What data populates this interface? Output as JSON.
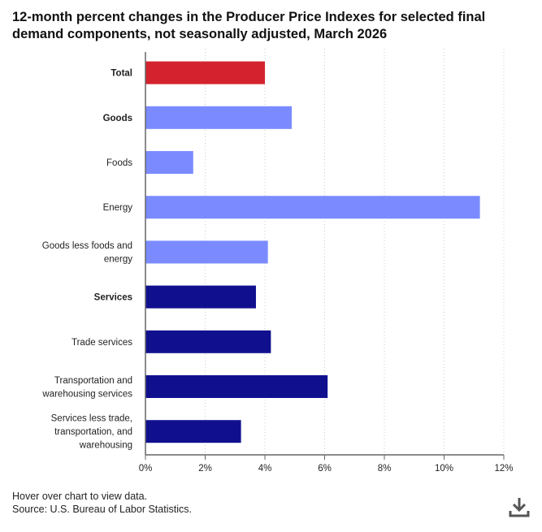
{
  "title": "12-month percent changes in the Producer Price Indexes for selected final demand components, not seasonally adjusted, March 2026",
  "footer": {
    "hint": "Hover over chart to view data.",
    "source": "Source: U.S. Bureau of Labor Statistics."
  },
  "download_icon": "download-icon",
  "colors": {
    "total": "#d4232e",
    "goods": "#7b8bff",
    "services": "#10108f",
    "axis": "#666666",
    "grid": "#cccccc"
  },
  "chart_data": {
    "type": "bar",
    "orientation": "horizontal",
    "categories": [
      [
        "Total"
      ],
      [
        "Goods"
      ],
      [
        "Foods"
      ],
      [
        "Energy"
      ],
      [
        "Goods less foods and",
        "energy"
      ],
      [
        "Services"
      ],
      [
        "Trade services"
      ],
      [
        "Transportation and",
        "warehousing services"
      ],
      [
        "Services less trade,",
        "transportation, and",
        "warehousing"
      ]
    ],
    "bold": [
      true,
      true,
      false,
      false,
      false,
      true,
      false,
      false,
      false
    ],
    "groups": [
      "total",
      "goods",
      "goods",
      "goods",
      "goods",
      "services",
      "services",
      "services",
      "services"
    ],
    "values": [
      4.0,
      4.9,
      1.6,
      11.2,
      4.1,
      3.7,
      4.2,
      6.1,
      3.2
    ],
    "xlim": [
      0,
      12
    ],
    "xticks": [
      0,
      2,
      4,
      6,
      8,
      10,
      12
    ],
    "tick_suffix": "%",
    "grid": "vertical dotted"
  }
}
